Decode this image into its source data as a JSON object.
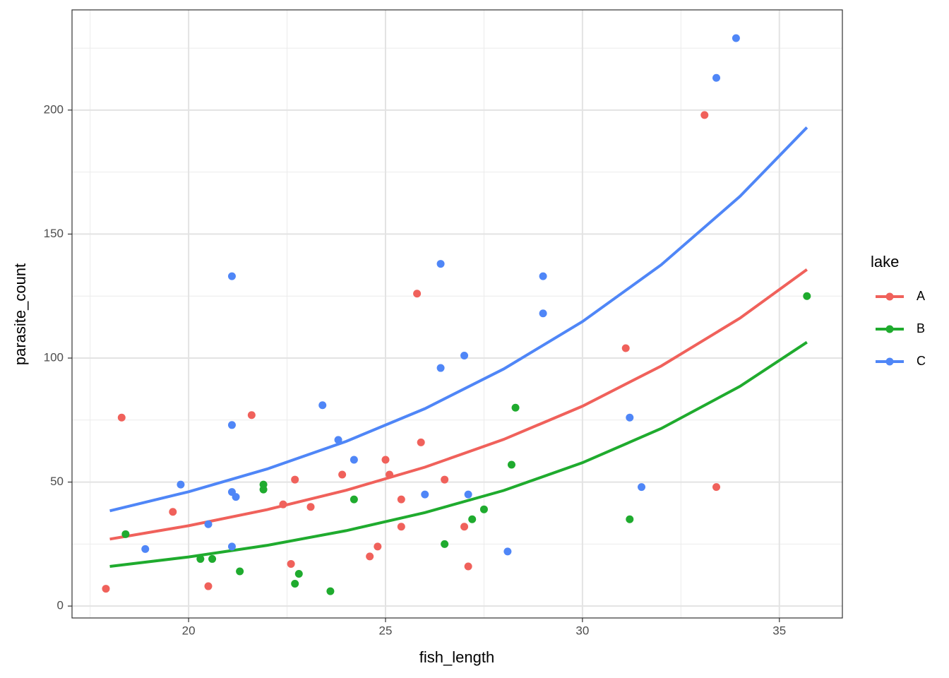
{
  "chart_data": {
    "type": "scatter",
    "x_label": "fish_length",
    "y_label": "parasite_count",
    "xlim": [
      17.04,
      36.6
    ],
    "ylim": [
      -4.8,
      240.4
    ],
    "xticks": [
      20,
      25,
      30,
      35
    ],
    "yticks": [
      0,
      50,
      100,
      150,
      200
    ],
    "grid": true,
    "legend_position": "right",
    "legend_title": "lake",
    "series": [
      {
        "name": "A",
        "color": "#f0615b",
        "x": [
          17.9,
          18.3,
          19.6,
          20.5,
          21.6,
          22.4,
          22.6,
          22.7,
          23.1,
          23.9,
          24.6,
          24.8,
          25.0,
          25.1,
          25.4,
          25.4,
          25.8,
          25.9,
          26.5,
          27.0,
          27.1,
          31.1,
          33.1,
          33.4
        ],
        "values": [
          7,
          76,
          38,
          8,
          77,
          41,
          17,
          51,
          40,
          53,
          20,
          24,
          59,
          53,
          43,
          32,
          126,
          66,
          51,
          32,
          16,
          104,
          198,
          48
        ],
        "fit_x": [
          18,
          20,
          22,
          24,
          26,
          28,
          30,
          32,
          34,
          35.7
        ],
        "fit_values": [
          27,
          32.4,
          38.9,
          46.7,
          56.0,
          67.2,
          80.6,
          96.8,
          116.1,
          135.7
        ]
      },
      {
        "name": "B",
        "color": "#1fab2e",
        "x": [
          18.4,
          20.3,
          20.6,
          21.3,
          21.9,
          21.9,
          22.7,
          22.8,
          23.6,
          24.2,
          26.5,
          27.2,
          27.5,
          28.2,
          28.3,
          31.2,
          35.7
        ],
        "values": [
          29,
          19,
          19,
          14,
          49,
          47,
          9,
          13,
          6,
          43,
          25,
          35,
          39,
          57,
          80,
          35,
          125
        ],
        "fit_x": [
          18,
          20,
          22,
          24,
          26,
          28,
          30,
          32,
          34,
          35.7
        ],
        "fit_values": [
          16,
          19.8,
          24.5,
          30.4,
          37.7,
          46.6,
          57.8,
          71.6,
          88.6,
          106.4
        ]
      },
      {
        "name": "C",
        "color": "#4f86f7",
        "x": [
          18.9,
          19.8,
          20.5,
          21.1,
          21.1,
          21.1,
          21.2,
          21.1,
          23.4,
          23.8,
          24.2,
          26.0,
          26.4,
          26.4,
          27.0,
          27.1,
          28.1,
          29.0,
          29.0,
          31.2,
          31.5,
          33.4,
          33.9
        ],
        "values": [
          23,
          49,
          33,
          133,
          73,
          46,
          44,
          24,
          81,
          67,
          59,
          45,
          138,
          96,
          101,
          45,
          22,
          133,
          118,
          76,
          48,
          213,
          229
        ],
        "fit_x": [
          18,
          20,
          22,
          24,
          26,
          28,
          30,
          32,
          34,
          35.7
        ],
        "fit_values": [
          38.4,
          46.1,
          55.3,
          66.4,
          79.6,
          95.6,
          114.7,
          137.6,
          165.2,
          193.0
        ]
      }
    ]
  }
}
